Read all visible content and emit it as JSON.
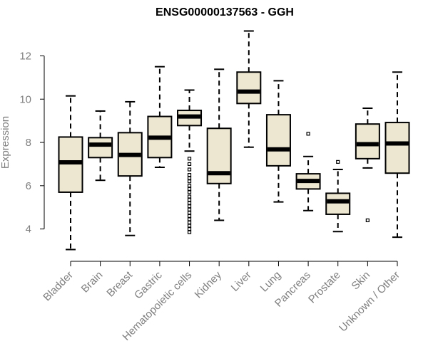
{
  "chart_data": {
    "type": "boxplot",
    "title": "ENSG00000137563 - GGH",
    "xlabel": "",
    "ylabel": "Expression",
    "ylim": [
      3.0,
      13.2
    ],
    "yticks": [
      4,
      6,
      8,
      10,
      12
    ],
    "grid": false,
    "box_color": "#ede7d1",
    "categories": [
      "Bladder",
      "Brain",
      "Breast",
      "Gastric",
      "Hematopoietic cells",
      "Kidney",
      "Liver",
      "Lung",
      "Pancreas",
      "Prostate",
      "Skin",
      "Unknown / Other"
    ],
    "boxes": [
      {
        "min": 3.05,
        "q1": 5.7,
        "median": 7.08,
        "q3": 8.25,
        "max": 10.15,
        "outliers": []
      },
      {
        "min": 6.25,
        "q1": 7.3,
        "median": 7.9,
        "q3": 8.22,
        "max": 9.45,
        "outliers": []
      },
      {
        "min": 3.7,
        "q1": 6.45,
        "median": 7.42,
        "q3": 8.45,
        "max": 9.88,
        "outliers": []
      },
      {
        "min": 6.85,
        "q1": 7.3,
        "median": 8.22,
        "q3": 9.2,
        "max": 11.5,
        "outliers": []
      },
      {
        "min": 7.6,
        "q1": 8.78,
        "median": 9.2,
        "q3": 9.48,
        "max": 10.42,
        "outliers": [
          7.25,
          7.0,
          6.75,
          6.5,
          6.35,
          6.2,
          6.0,
          5.85,
          5.7,
          5.5,
          5.35,
          5.2,
          5.05,
          4.9,
          4.75,
          4.6,
          4.45,
          4.3,
          4.15,
          4.0,
          3.85
        ]
      },
      {
        "min": 4.4,
        "q1": 6.1,
        "median": 6.58,
        "q3": 8.65,
        "max": 11.38,
        "outliers": []
      },
      {
        "min": 7.78,
        "q1": 9.8,
        "median": 10.35,
        "q3": 11.25,
        "max": 13.15,
        "outliers": []
      },
      {
        "min": 5.25,
        "q1": 6.92,
        "median": 7.68,
        "q3": 9.28,
        "max": 10.85,
        "outliers": []
      },
      {
        "min": 4.85,
        "q1": 5.85,
        "median": 6.22,
        "q3": 6.55,
        "max": 7.35,
        "outliers": [
          8.4
        ]
      },
      {
        "min": 3.88,
        "q1": 4.68,
        "median": 5.28,
        "q3": 5.65,
        "max": 6.75,
        "outliers": [
          7.1
        ]
      },
      {
        "min": 6.82,
        "q1": 7.25,
        "median": 7.92,
        "q3": 8.85,
        "max": 9.58,
        "outliers": [
          4.4
        ]
      },
      {
        "min": 3.62,
        "q1": 6.58,
        "median": 7.95,
        "q3": 8.92,
        "max": 11.25,
        "outliers": []
      }
    ]
  }
}
